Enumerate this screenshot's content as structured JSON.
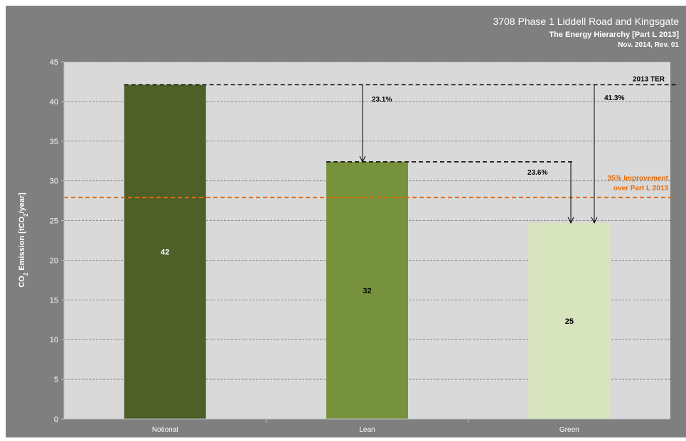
{
  "header": {
    "title": "3708 Phase 1 Liddell Road and Kingsgate",
    "subtitle": "The Energy  Hierarchy [Part L 2013]",
    "date_rev": "Nov. 2014, Rev. 01"
  },
  "chart_data": {
    "type": "bar",
    "categories": [
      "Notional",
      "Lean",
      "Green"
    ],
    "values": [
      42.1,
      32.4,
      24.7
    ],
    "value_labels": [
      "42",
      "32",
      "25"
    ],
    "ylabel": "CO2 Emission [tCO2/year]",
    "ylim": [
      0,
      45
    ],
    "yticks": [
      0,
      5,
      10,
      15,
      20,
      25,
      30,
      35,
      40,
      45
    ],
    "grid": true,
    "bar_colors": [
      "#4e5f28",
      "#77923c",
      "#d7e4bd"
    ],
    "ter_line": {
      "label": "2013 TER",
      "value": 42.1
    },
    "target_line": {
      "label_line1": "35% Improvement",
      "label_line2": "over Part L 2013",
      "value": 27.9,
      "color": "#e46c0a"
    },
    "reductions": [
      {
        "label": "23.1%",
        "from": 42.1,
        "to": 32.4
      },
      {
        "label": "23.6%",
        "from": 32.4,
        "to": 24.7
      },
      {
        "label": "41.3%",
        "from": 42.1,
        "to": 24.7
      }
    ],
    "colors": {
      "panel_bg": "#7f7f7f",
      "plot_bg": "#d9d9d9",
      "grid": "#8c8c8c",
      "text": "#ffffff"
    }
  }
}
